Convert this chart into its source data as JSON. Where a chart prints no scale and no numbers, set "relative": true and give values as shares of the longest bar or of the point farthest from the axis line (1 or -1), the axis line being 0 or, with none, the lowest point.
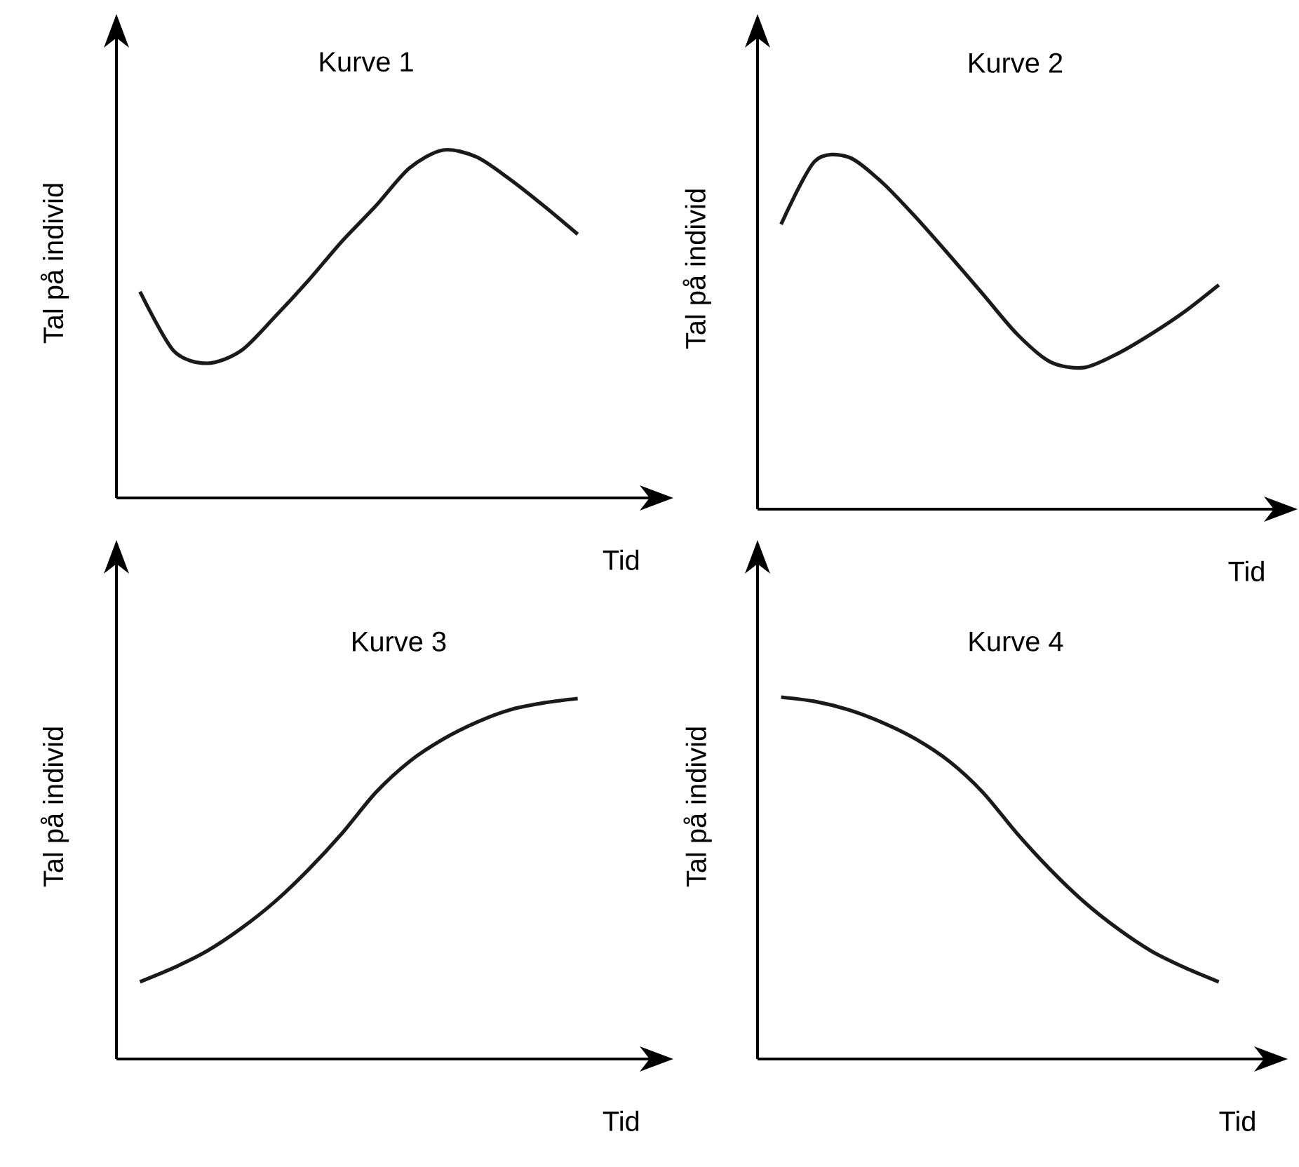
{
  "chart_data": [
    {
      "type": "line",
      "title": "Kurve 1",
      "xlabel": "Tid",
      "ylabel": "Tal på individ",
      "relative": true,
      "color": "#1a1a1a",
      "categories": [
        null,
        null,
        null,
        null,
        null,
        null,
        null,
        null,
        null,
        null,
        null,
        null,
        null,
        null
      ],
      "values": [
        0.593,
        0.423,
        0.387,
        0.423,
        0.52,
        0.625,
        0.738,
        0.839,
        0.948,
        1,
        0.98,
        0.915,
        0.839,
        0.758
      ]
    },
    {
      "type": "line",
      "title": "Kurve 2",
      "xlabel": "Tid",
      "ylabel": "Tal på individ",
      "relative": true,
      "color": "#1a1a1a",
      "categories": [
        null,
        null,
        null,
        null,
        null,
        null,
        null,
        null,
        null,
        null,
        null,
        null,
        null,
        null
      ],
      "values": [
        0.809,
        0.988,
        1,
        0.928,
        0.829,
        0.721,
        0.61,
        0.498,
        0.418,
        0.402,
        0.442,
        0.498,
        0.562,
        0.637
      ]
    },
    {
      "type": "line",
      "title": "Kurve 3",
      "xlabel": "Tid",
      "ylabel": "Tal på individ",
      "relative": true,
      "color": "#1a1a1a",
      "categories": [
        null,
        null,
        null,
        null,
        null,
        null,
        null,
        null,
        null,
        null,
        null,
        null,
        null,
        null
      ],
      "values": [
        0.214,
        0.253,
        0.3,
        0.362,
        0.436,
        0.525,
        0.626,
        0.739,
        0.825,
        0.887,
        0.934,
        0.969,
        0.988,
        1
      ]
    },
    {
      "type": "line",
      "title": "Kurve 4",
      "xlabel": "Tid",
      "ylabel": "Tal på individ",
      "relative": true,
      "color": "#1a1a1a",
      "categories": [
        null,
        null,
        null,
        null,
        null,
        null,
        null,
        null,
        null,
        null,
        null,
        null,
        null,
        null
      ],
      "values": [
        1,
        0.988,
        0.965,
        0.93,
        0.884,
        0.822,
        0.736,
        0.624,
        0.523,
        0.434,
        0.36,
        0.298,
        0.252,
        0.213
      ]
    }
  ]
}
